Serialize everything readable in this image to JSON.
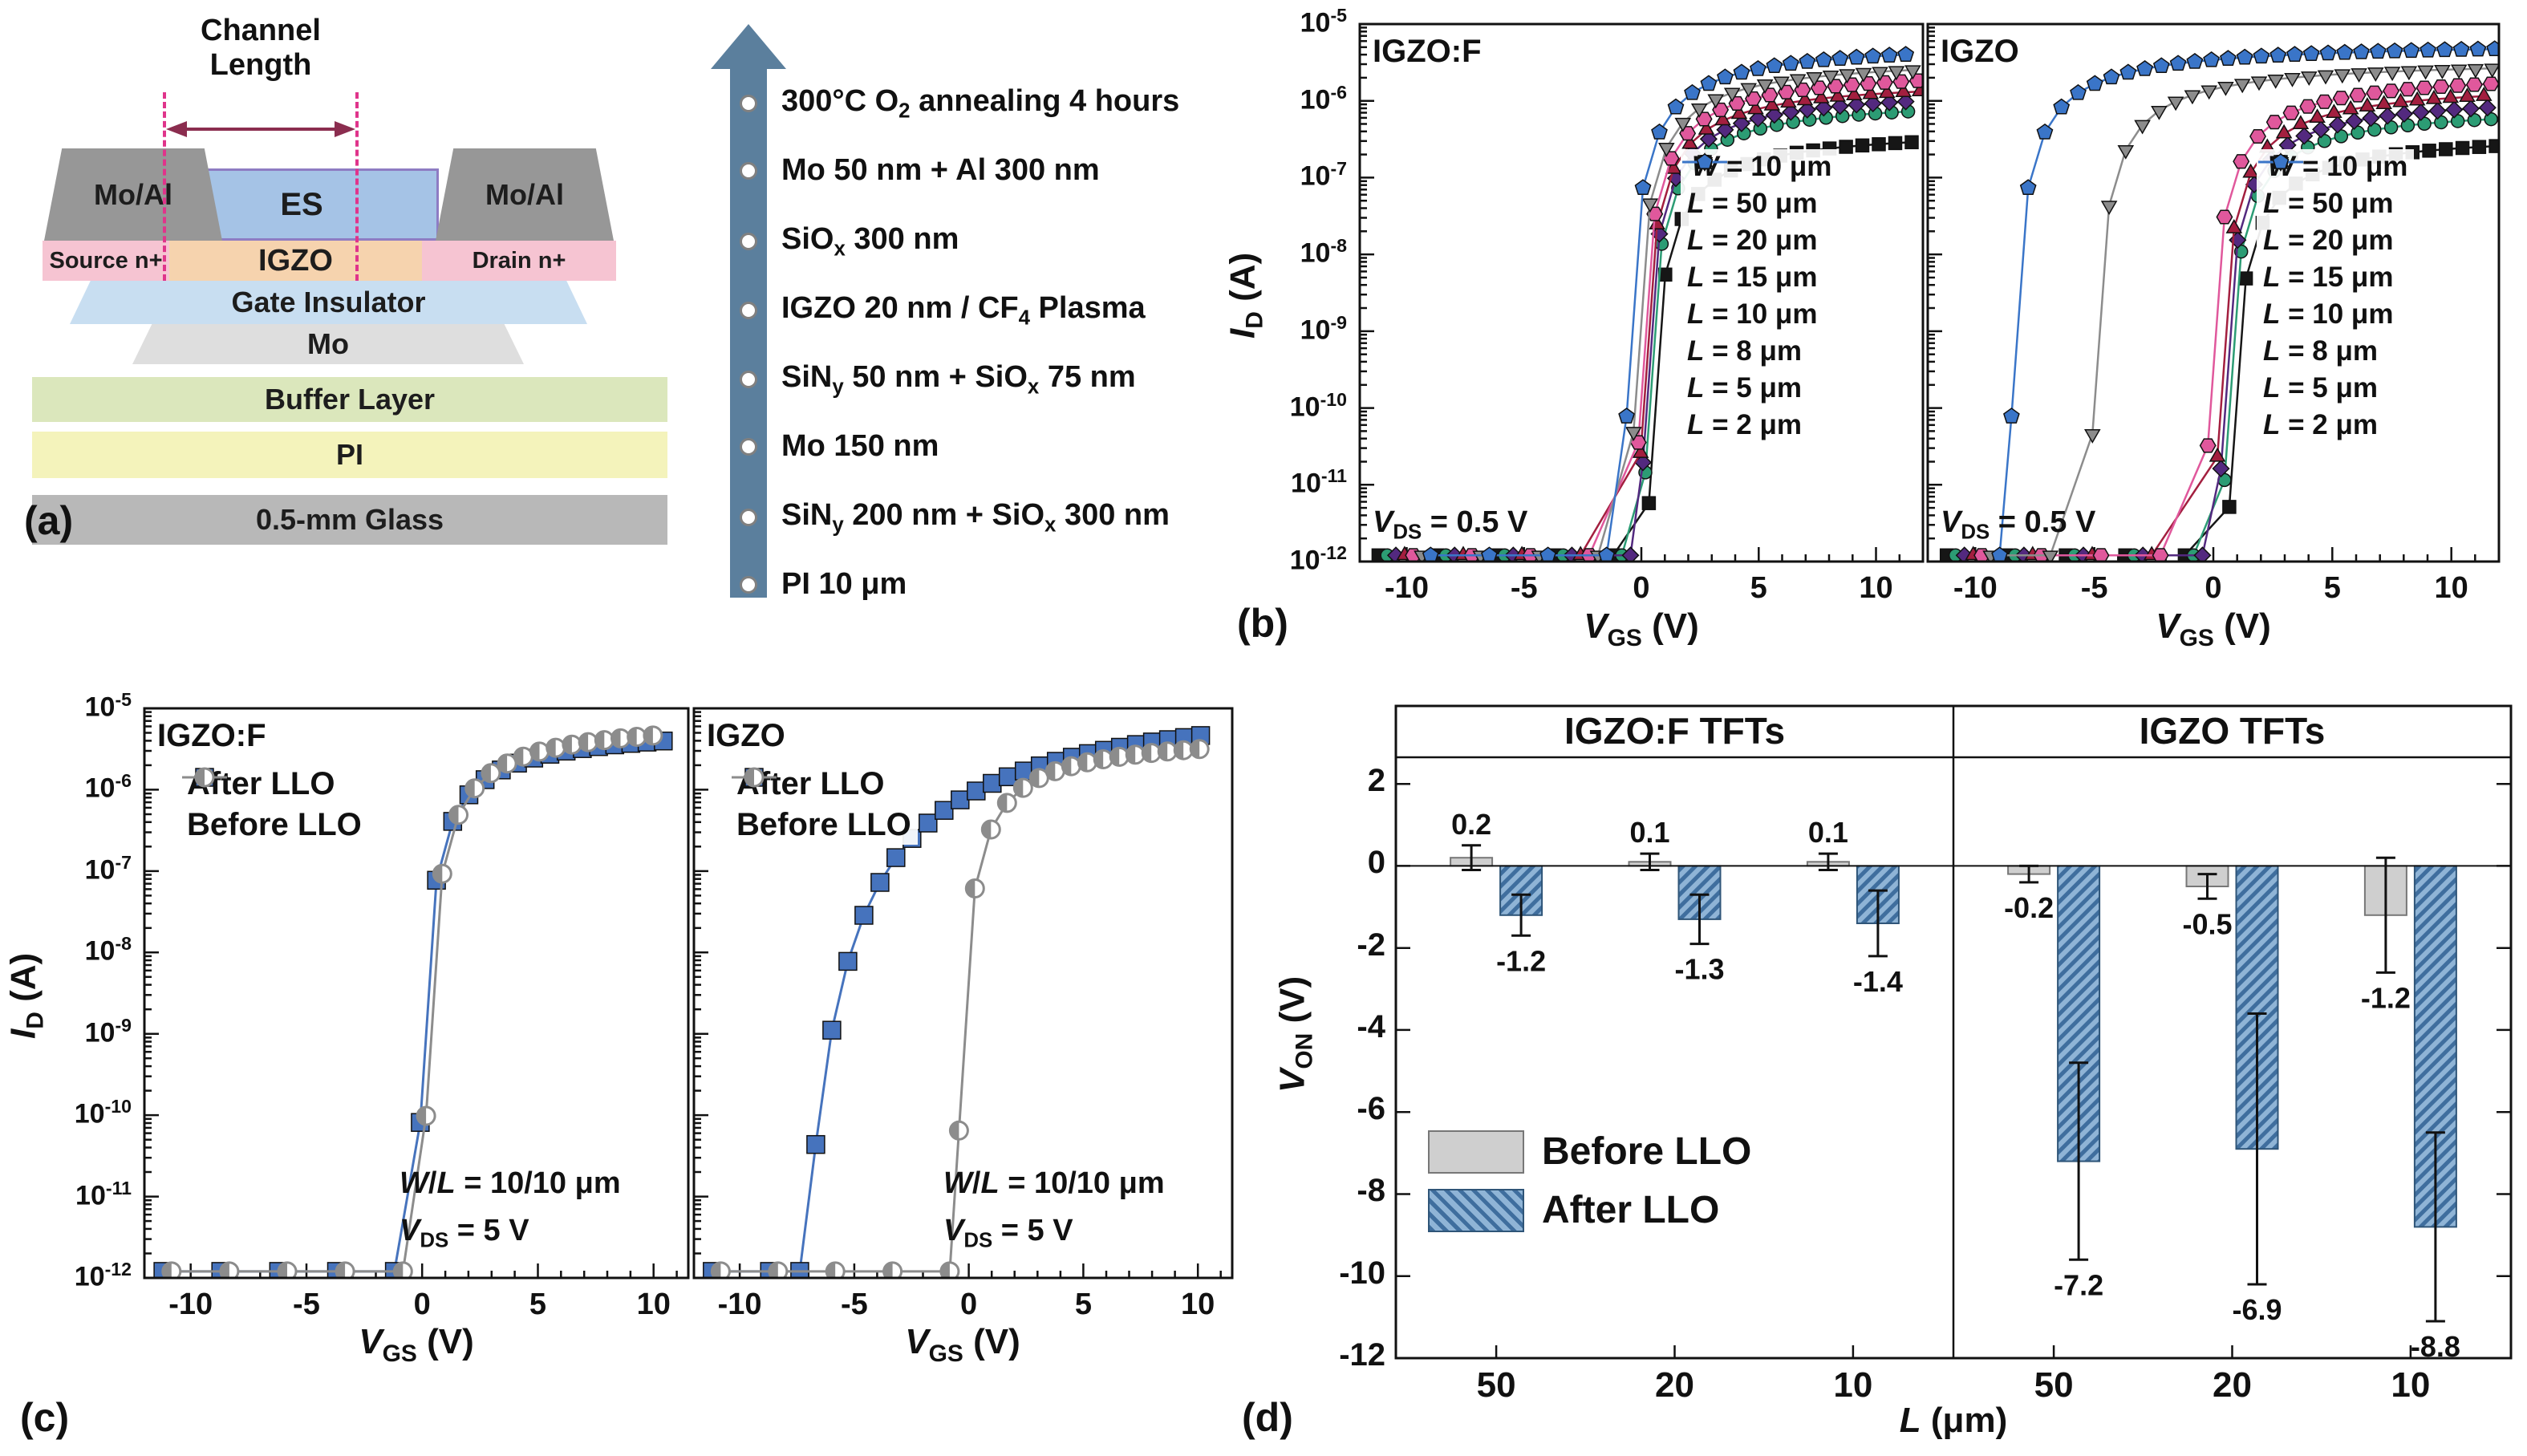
{
  "figure": {
    "panel_a_label": "(a)",
    "panel_b_label": "(b)",
    "panel_c_label": "(c)",
    "panel_d_label": "(d)"
  },
  "device": {
    "channel_length": "Channel Length",
    "moal": "Mo/Al",
    "es": "ES",
    "source": "Source n+",
    "igzo": "IGZO",
    "drain": "Drain n+",
    "gate_insulator": "Gate Insulator",
    "mo": "Mo",
    "buffer": "Buffer Layer",
    "pi": "PI",
    "glass": "0.5-mm Glass"
  },
  "process": {
    "steps": [
      "300°C O~2~ annealing 4 hours",
      "Mo 50 nm + Al 300 nm",
      "SiO~x~ 300 nm",
      "IGZO 20 nm / CF~4~ Plasma",
      "SiN~y~ 50 nm + SiO~x~ 75 nm",
      "Mo 150 nm",
      "SiN~y~ 200 nm + SiO~x~ 300 nm",
      "PI 10 μm"
    ]
  },
  "models": {
    "steep": {
      "A": 2.2,
      "d": 0.33
    },
    "gradual": {
      "A": 12,
      "d": 1.3
    }
  },
  "chart_data": [
    {
      "id": "b_left",
      "type": "line",
      "title": "IGZO:F",
      "xlabel": "*V*~GS~ (V)",
      "ylabel": "*I*~D~ (A)",
      "xlim": [
        -12,
        12
      ],
      "xticks": [
        -10,
        -5,
        0,
        5,
        10
      ],
      "ylim_exp": [
        -12,
        -5
      ],
      "yticks_exp": [
        -5,
        -6,
        -7,
        -8,
        -9,
        -10,
        -11,
        -12
      ],
      "ytick_labels": [
        "10^-5^",
        "10^-6^",
        "10^-7^",
        "10^-8^",
        "10^-9^",
        "10^-10^",
        "10^-11^",
        "10^-12^"
      ],
      "annotation": "*V*~DS~ = 0.5 V",
      "legend_header": "*W* = 10 μm",
      "series": [
        {
          "label": "*L* = 50 μm",
          "color": "#161616",
          "marker": "square",
          "model": "steep",
          "v_on": 0.2,
          "log_imax": -6.35
        },
        {
          "label": "*L* = 20 μm",
          "color": "#2c9c74",
          "marker": "circle",
          "model": "steep",
          "v_on": 0.05,
          "log_imax": -5.95
        },
        {
          "label": "*L* = 15 μm",
          "color": "#53297f",
          "marker": "diamond",
          "model": "steep",
          "v_on": -0.05,
          "log_imax": -5.82
        },
        {
          "label": "*L* = 10 μm",
          "color": "#a31f3f",
          "marker": "triangle-up",
          "model": "steep",
          "v_on": -0.15,
          "log_imax": -5.7
        },
        {
          "label": "*L* = 8 μm",
          "color": "#e0589c",
          "marker": "hexagon",
          "model": "steep",
          "v_on": -0.25,
          "log_imax": -5.56
        },
        {
          "label": "*L* = 5 μm",
          "color": "#8c8c8c",
          "marker": "triangle-down",
          "model": "steep",
          "v_on": -0.45,
          "log_imax": -5.42
        },
        {
          "label": "*L* = 2 μm",
          "color": "#3a75c8",
          "marker": "pentagon",
          "model": "steep",
          "v_on": -0.75,
          "log_imax": -5.22
        }
      ]
    },
    {
      "id": "b_right",
      "type": "line",
      "title": "IGZO",
      "xlabel": "*V*~GS~ (V)",
      "ylabel": "*I*~D~ (A)",
      "xlim": [
        -12,
        12
      ],
      "xticks": [
        -10,
        -5,
        0,
        5,
        10
      ],
      "ylim_exp": [
        -12,
        -5
      ],
      "yticks_exp": [
        -5,
        -6,
        -7,
        -8,
        -9,
        -10,
        -11,
        -12
      ],
      "ytick_labels": [
        "10^-5^",
        "10^-6^",
        "10^-7^",
        "10^-8^",
        "10^-9^",
        "10^-10^",
        "10^-11^",
        "10^-12^"
      ],
      "annotation": "*V*~DS~ = 0.5 V",
      "legend_header": "*W* = 10 μm",
      "series": [
        {
          "label": "*L* = 50 μm",
          "color": "#161616",
          "marker": "square",
          "model": "steep",
          "v_on": 0.55,
          "log_imax": -6.4
        },
        {
          "label": "*L* = 20 μm",
          "color": "#2c9c74",
          "marker": "circle",
          "model": "steep",
          "v_on": 0.35,
          "log_imax": -6.05
        },
        {
          "label": "*L* = 15 μm",
          "color": "#53297f",
          "marker": "diamond",
          "model": "steep",
          "v_on": 0.2,
          "log_imax": -5.9
        },
        {
          "label": "*L* = 10 μm",
          "color": "#a31f3f",
          "marker": "triangle-up",
          "model": "steep",
          "v_on": 0.05,
          "log_imax": -5.75
        },
        {
          "label": "*L* = 8 μm",
          "color": "#e0589c",
          "marker": "hexagon",
          "model": "steep",
          "v_on": -0.35,
          "log_imax": -5.6
        },
        {
          "label": "*L* = 5 μm",
          "color": "#8c8c8c",
          "marker": "triangle-down",
          "model": "steep",
          "v_on": -5.2,
          "log_imax": -5.45
        },
        {
          "label": "*L* = 2 μm",
          "color": "#3a75c8",
          "marker": "pentagon",
          "model": "steep",
          "v_on": -8.6,
          "log_imax": -5.22
        }
      ]
    },
    {
      "id": "c_left",
      "type": "line",
      "title": "IGZO:F",
      "xlabel": "*V*~GS~ (V)",
      "ylabel": "*I*~D~ (A)",
      "xlim": [
        -12,
        11.5
      ],
      "xmax_data": 10.5,
      "xticks": [
        -10,
        -5,
        0,
        5,
        10
      ],
      "ylim_exp": [
        -12,
        -5
      ],
      "yticks_exp": [
        -5,
        -6,
        -7,
        -8,
        -9,
        -10,
        -11,
        -12
      ],
      "ytick_labels": [
        "10^-5^",
        "10^-6^",
        "10^-7^",
        "10^-8^",
        "10^-9^",
        "10^-10^",
        "10^-11^",
        "10^-12^"
      ],
      "annotation_lines": [
        "*W*/*L* = 10/10 μm",
        "*V*~DS~ = 5 V"
      ],
      "series": [
        {
          "label": "After LLO",
          "color": "#4673bd",
          "marker": "square",
          "model": "steep",
          "v_on": -0.2,
          "log_imax": -5.2
        },
        {
          "label": "Before LLO",
          "color": "#8c8c8c",
          "marker": "circle-half",
          "model": "steep",
          "v_on": 0.05,
          "log_imax": -5.12
        }
      ]
    },
    {
      "id": "c_right",
      "type": "line",
      "title": "IGZO",
      "xlabel": "*V*~GS~ (V)",
      "ylabel": "*I*~D~ (A)",
      "xlim": [
        -12,
        11.5
      ],
      "xmax_data": 10.5,
      "xticks": [
        -10,
        -5,
        0,
        5,
        10
      ],
      "ylim_exp": [
        -12,
        -5
      ],
      "yticks_exp": [
        -5,
        -6,
        -7,
        -8,
        -9,
        -10,
        -11,
        -12
      ],
      "ytick_labels": [
        "10^-5^",
        "10^-6^",
        "10^-7^",
        "10^-8^",
        "10^-9^",
        "10^-10^",
        "10^-11^",
        "10^-12^"
      ],
      "annotation_lines": [
        "*W*/*L* = 10/10 μm",
        "*V*~DS~ = 5 V"
      ],
      "series": [
        {
          "label": "After LLO",
          "color": "#4673bd",
          "marker": "square",
          "model": "gradual",
          "v_on": -7.5,
          "log_imax": -4.7
        },
        {
          "label": "Before LLO",
          "color": "#8c8c8c",
          "marker": "circle-half",
          "model": "steep",
          "v_on": -0.55,
          "log_imax": -5.3
        }
      ]
    },
    {
      "id": "d",
      "type": "bar",
      "ylabel": "*V*~ON~ (V)",
      "xlabel": "*L* (μm)",
      "ylim": [
        -12,
        2
      ],
      "yticks": [
        2,
        0,
        -2,
        -4,
        -6,
        -8,
        -10,
        -12
      ],
      "series_names": [
        "Before LLO",
        "After LLO"
      ],
      "legend": [
        {
          "label": "Before LLO",
          "fill": "#cfcfcf",
          "hatch": false
        },
        {
          "label": "After LLO",
          "fill": "#8fb4d6",
          "hatch": true
        }
      ],
      "groups": [
        {
          "header": "IGZO:F TFTs",
          "bars": [
            {
              "L": "50",
              "before": 0.2,
              "before_err": 0.3,
              "before_label": "0.2",
              "after": -1.2,
              "after_err": 0.5,
              "after_label": "-1.2"
            },
            {
              "L": "20",
              "before": 0.1,
              "before_err": 0.2,
              "before_label": "0.1",
              "after": -1.3,
              "after_err": 0.6,
              "after_label": "-1.3"
            },
            {
              "L": "10",
              "before": 0.1,
              "before_err": 0.2,
              "before_label": "0.1",
              "after": -1.4,
              "after_err": 0.8,
              "after_label": "-1.4"
            }
          ]
        },
        {
          "header": "IGZO TFTs",
          "bars": [
            {
              "L": "50",
              "before": -0.2,
              "before_err": 0.2,
              "before_label": "-0.2",
              "after": -7.2,
              "after_err": 2.4,
              "after_label": "-7.2"
            },
            {
              "L": "20",
              "before": -0.5,
              "before_err": 0.3,
              "before_label": "-0.5",
              "after": -6.9,
              "after_err": 3.3,
              "after_label": "-6.9"
            },
            {
              "L": "10",
              "before": -1.2,
              "before_err": 1.4,
              "before_label": "-1.2",
              "after": -8.8,
              "after_err": 2.3,
              "after_label": "-8.8"
            }
          ]
        }
      ]
    }
  ]
}
